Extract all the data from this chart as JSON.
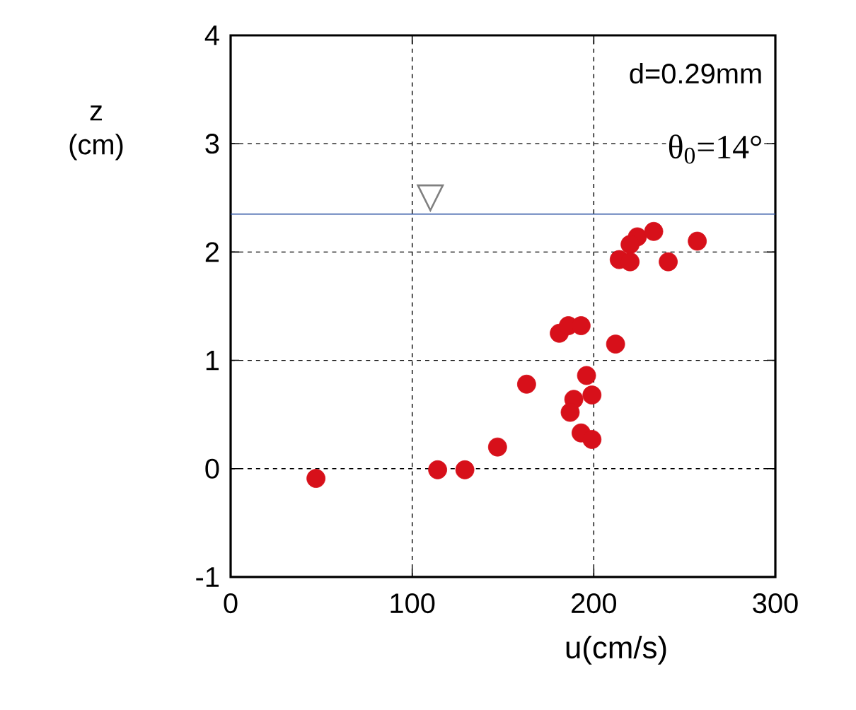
{
  "chart_data": {
    "type": "scatter",
    "xlabel": "u(cm/s)",
    "ylabel": "z (cm)",
    "xlim": [
      0,
      300
    ],
    "ylim": [
      -1,
      4
    ],
    "xticks": [
      0,
      100,
      200,
      300
    ],
    "yticks": [
      -1,
      0,
      1,
      2,
      3,
      4
    ],
    "grid": true,
    "marker": "circle",
    "series": [
      {
        "color": "#d7101a",
        "x": [
          47,
          114,
          129,
          147,
          163,
          181,
          186,
          193,
          212,
          196,
          199,
          189,
          187,
          193,
          199,
          214,
          220,
          224,
          233,
          241,
          257,
          220
        ],
        "values": [
          -0.09,
          -0.01,
          -0.01,
          0.2,
          0.78,
          1.25,
          1.32,
          1.32,
          1.15,
          0.86,
          0.68,
          0.64,
          0.52,
          0.33,
          0.27,
          1.93,
          1.91,
          2.14,
          2.19,
          1.91,
          2.1,
          2.07
        ]
      }
    ],
    "ref_lines": [
      {
        "axis": "y",
        "value": 2.35,
        "label": "▽",
        "color": "#2f55a4"
      }
    ],
    "annotations": [
      "d=0.29mm",
      "θ$_{0}$=14°"
    ]
  }
}
